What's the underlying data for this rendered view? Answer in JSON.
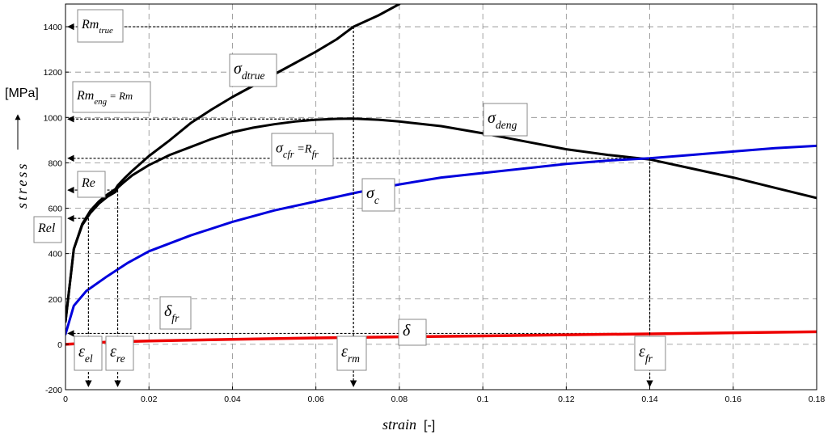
{
  "chart_data": {
    "type": "line",
    "xlabel": "strain",
    "xunit": "[-]",
    "ylabel": "stress",
    "yunit": "[MPa]",
    "xlim": [
      0,
      0.18
    ],
    "ylim": [
      -200,
      1500
    ],
    "x_ticks": [
      0,
      0.02,
      0.04,
      0.06,
      0.08,
      0.1,
      0.12,
      0.14,
      0.16,
      0.18
    ],
    "x_tick_labels": [
      "0",
      "0.02",
      "0.04",
      "0.06",
      "0.08",
      "0.1",
      "0.12",
      "0.14",
      "0.16",
      "0.18"
    ],
    "y_ticks": [
      -200,
      0,
      200,
      400,
      600,
      800,
      1000,
      1200,
      1400
    ],
    "y_tick_labels": [
      "-200",
      "0",
      "200",
      "400",
      "600",
      "800",
      "1000",
      "1200",
      "1400"
    ],
    "grid": true,
    "series": [
      {
        "name": "σdtrue",
        "color": "#000000",
        "points": [
          [
            0,
            100
          ],
          [
            0.002,
            420
          ],
          [
            0.004,
            530
          ],
          [
            0.006,
            590
          ],
          [
            0.008,
            630
          ],
          [
            0.01,
            660
          ],
          [
            0.012,
            685
          ],
          [
            0.0125,
            700
          ],
          [
            0.014,
            730
          ],
          [
            0.016,
            765
          ],
          [
            0.02,
            830
          ],
          [
            0.025,
            900
          ],
          [
            0.03,
            975
          ],
          [
            0.035,
            1035
          ],
          [
            0.04,
            1090
          ],
          [
            0.045,
            1140
          ],
          [
            0.05,
            1190
          ],
          [
            0.055,
            1240
          ],
          [
            0.06,
            1290
          ],
          [
            0.065,
            1345
          ],
          [
            0.069,
            1400
          ],
          [
            0.075,
            1450
          ],
          [
            0.08,
            1500
          ]
        ]
      },
      {
        "name": "σdeng",
        "color": "#000000",
        "points": [
          [
            0,
            100
          ],
          [
            0.002,
            420
          ],
          [
            0.004,
            525
          ],
          [
            0.006,
            580
          ],
          [
            0.008,
            620
          ],
          [
            0.01,
            650
          ],
          [
            0.012,
            672
          ],
          [
            0.0125,
            690
          ],
          [
            0.014,
            715
          ],
          [
            0.016,
            745
          ],
          [
            0.02,
            790
          ],
          [
            0.025,
            835
          ],
          [
            0.03,
            870
          ],
          [
            0.035,
            905
          ],
          [
            0.04,
            935
          ],
          [
            0.045,
            955
          ],
          [
            0.05,
            970
          ],
          [
            0.055,
            982
          ],
          [
            0.06,
            990
          ],
          [
            0.065,
            994
          ],
          [
            0.069,
            995
          ],
          [
            0.075,
            990
          ],
          [
            0.08,
            982
          ],
          [
            0.09,
            962
          ],
          [
            0.1,
            930
          ],
          [
            0.11,
            895
          ],
          [
            0.12,
            860
          ],
          [
            0.13,
            835
          ],
          [
            0.14,
            815
          ],
          [
            0.15,
            775
          ],
          [
            0.16,
            735
          ],
          [
            0.17,
            690
          ],
          [
            0.18,
            645
          ]
        ]
      },
      {
        "name": "σc",
        "color": "#0000dd",
        "points": [
          [
            0,
            45
          ],
          [
            0.002,
            170
          ],
          [
            0.005,
            235
          ],
          [
            0.01,
            300
          ],
          [
            0.015,
            360
          ],
          [
            0.02,
            410
          ],
          [
            0.03,
            480
          ],
          [
            0.04,
            540
          ],
          [
            0.05,
            590
          ],
          [
            0.06,
            630
          ],
          [
            0.07,
            670
          ],
          [
            0.08,
            705
          ],
          [
            0.09,
            735
          ],
          [
            0.1,
            755
          ],
          [
            0.11,
            775
          ],
          [
            0.12,
            795
          ],
          [
            0.13,
            810
          ],
          [
            0.14,
            820
          ],
          [
            0.15,
            835
          ],
          [
            0.16,
            850
          ],
          [
            0.17,
            865
          ],
          [
            0.18,
            875
          ]
        ]
      },
      {
        "name": "δ",
        "color": "#ee0000",
        "points": [
          [
            0,
            0
          ],
          [
            0.01,
            10
          ],
          [
            0.02,
            15
          ],
          [
            0.04,
            22
          ],
          [
            0.06,
            28
          ],
          [
            0.08,
            33
          ],
          [
            0.1,
            37
          ],
          [
            0.12,
            42
          ],
          [
            0.14,
            46
          ],
          [
            0.16,
            51
          ],
          [
            0.18,
            55
          ]
        ]
      }
    ],
    "reference_lines": [
      {
        "name": "Rm_true",
        "y": 1400,
        "x": 0.069
      },
      {
        "name": "Rm",
        "y": 993,
        "x": 0.069
      },
      {
        "name": "Rcfr",
        "y": 820,
        "x": 0.14
      },
      {
        "name": "Re",
        "y": 680,
        "x": 0.0125
      },
      {
        "name": "Rel",
        "y": 555,
        "x": 0.0055
      },
      {
        "name": "delta_fr",
        "y": 48,
        "x": 0.14
      }
    ],
    "annotations": [
      {
        "id": "rm_true",
        "main": "Rm",
        "sub": "true",
        "tail": ""
      },
      {
        "id": "rm_eng",
        "main": "Rm",
        "sub": "eng",
        "tail": " = Rm"
      },
      {
        "id": "re",
        "main": "Re",
        "sub": "",
        "tail": ""
      },
      {
        "id": "rel",
        "main": "Rel",
        "sub": "",
        "tail": ""
      },
      {
        "id": "sigma_dtrue",
        "main": "σ",
        "sub": "dtrue",
        "tail": ""
      },
      {
        "id": "sigma_deng",
        "main": "σ",
        "sub": "deng",
        "tail": ""
      },
      {
        "id": "sigma_cfr",
        "main": "σ",
        "sub": "cfr",
        "tail": " =R",
        "sub2": "fr"
      },
      {
        "id": "sigma_c",
        "main": "σ",
        "sub": "c",
        "tail": ""
      },
      {
        "id": "delta_fr",
        "main": "δ",
        "sub": "fr",
        "tail": ""
      },
      {
        "id": "delta",
        "main": "δ",
        "sub": "",
        "tail": ""
      },
      {
        "id": "eps_el",
        "main": "ε",
        "sub": "el",
        "tail": ""
      },
      {
        "id": "eps_re",
        "main": "ε",
        "sub": "re",
        "tail": ""
      },
      {
        "id": "eps_rm",
        "main": "ε",
        "sub": "rm",
        "tail": ""
      },
      {
        "id": "eps_fr",
        "main": "ε",
        "sub": "fr",
        "tail": ""
      }
    ],
    "strain_markers": [
      {
        "id": "eps_el",
        "x": 0.0055
      },
      {
        "id": "eps_re",
        "x": 0.0125
      },
      {
        "id": "eps_rm",
        "x": 0.069
      },
      {
        "id": "eps_fr",
        "x": 0.14
      }
    ]
  }
}
